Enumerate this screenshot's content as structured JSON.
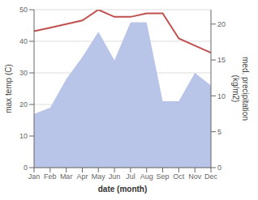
{
  "chart_data": {
    "type": "line",
    "categories": [
      "Jan",
      "Feb",
      "Mar",
      "Apr",
      "May",
      "Jun",
      "Jul",
      "Aug",
      "Sep",
      "Oct",
      "Nov",
      "Dec"
    ],
    "series": [
      {
        "type": "area",
        "color": "#b8c4e8",
        "values": [
          17,
          19,
          28,
          35,
          43,
          34,
          46,
          46,
          21,
          21,
          30,
          26
        ]
      },
      {
        "type": "line",
        "color": "#c0504d",
        "axis": "y2",
        "values": [
          19,
          19.5,
          20,
          20.5,
          22,
          21,
          21,
          21.5,
          21.5,
          18,
          17,
          16
        ]
      }
    ],
    "xlabel": "date (month)",
    "ylabel": "max temp (C)",
    "y2label": "med. precipitation\n(kg/m2)",
    "ylim": [
      0,
      50
    ],
    "yticks": [
      0,
      10,
      20,
      30,
      40,
      50
    ],
    "y2lim": [
      0,
      22
    ],
    "y2ticks": [
      0,
      5,
      10,
      15,
      20
    ],
    "grid": true
  }
}
